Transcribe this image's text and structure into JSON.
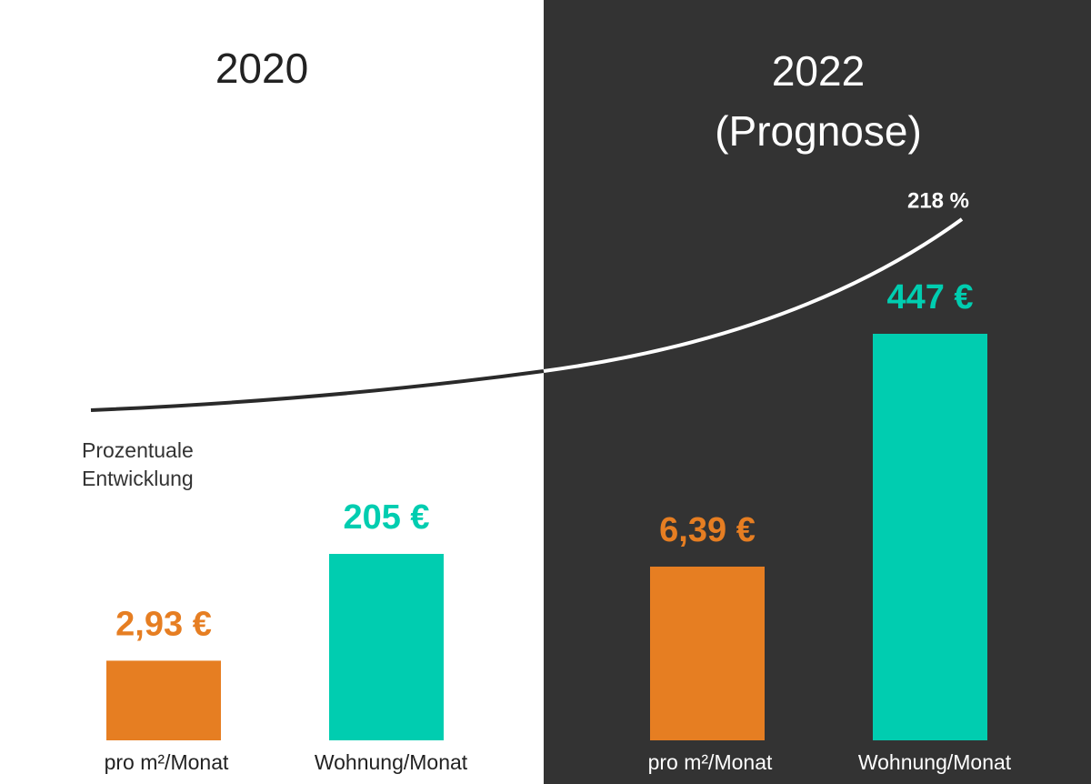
{
  "chart_data": {
    "type": "bar",
    "categories": [
      "2020",
      "2022 (Prognose)"
    ],
    "series": [
      {
        "name": "pro m²/Monat",
        "color": "#e67e22",
        "values": [
          2.93,
          6.39
        ],
        "value_labels": [
          "2,93 €",
          "6,39 €"
        ]
      },
      {
        "name": "Wohnung/Monat",
        "color": "#00cdb0",
        "values": [
          205,
          447
        ],
        "value_labels": [
          "205 €",
          "447 €"
        ]
      }
    ],
    "annotations": {
      "growth": "218 %",
      "growth_label": "Prozentuale Entwicklung"
    }
  }
}
